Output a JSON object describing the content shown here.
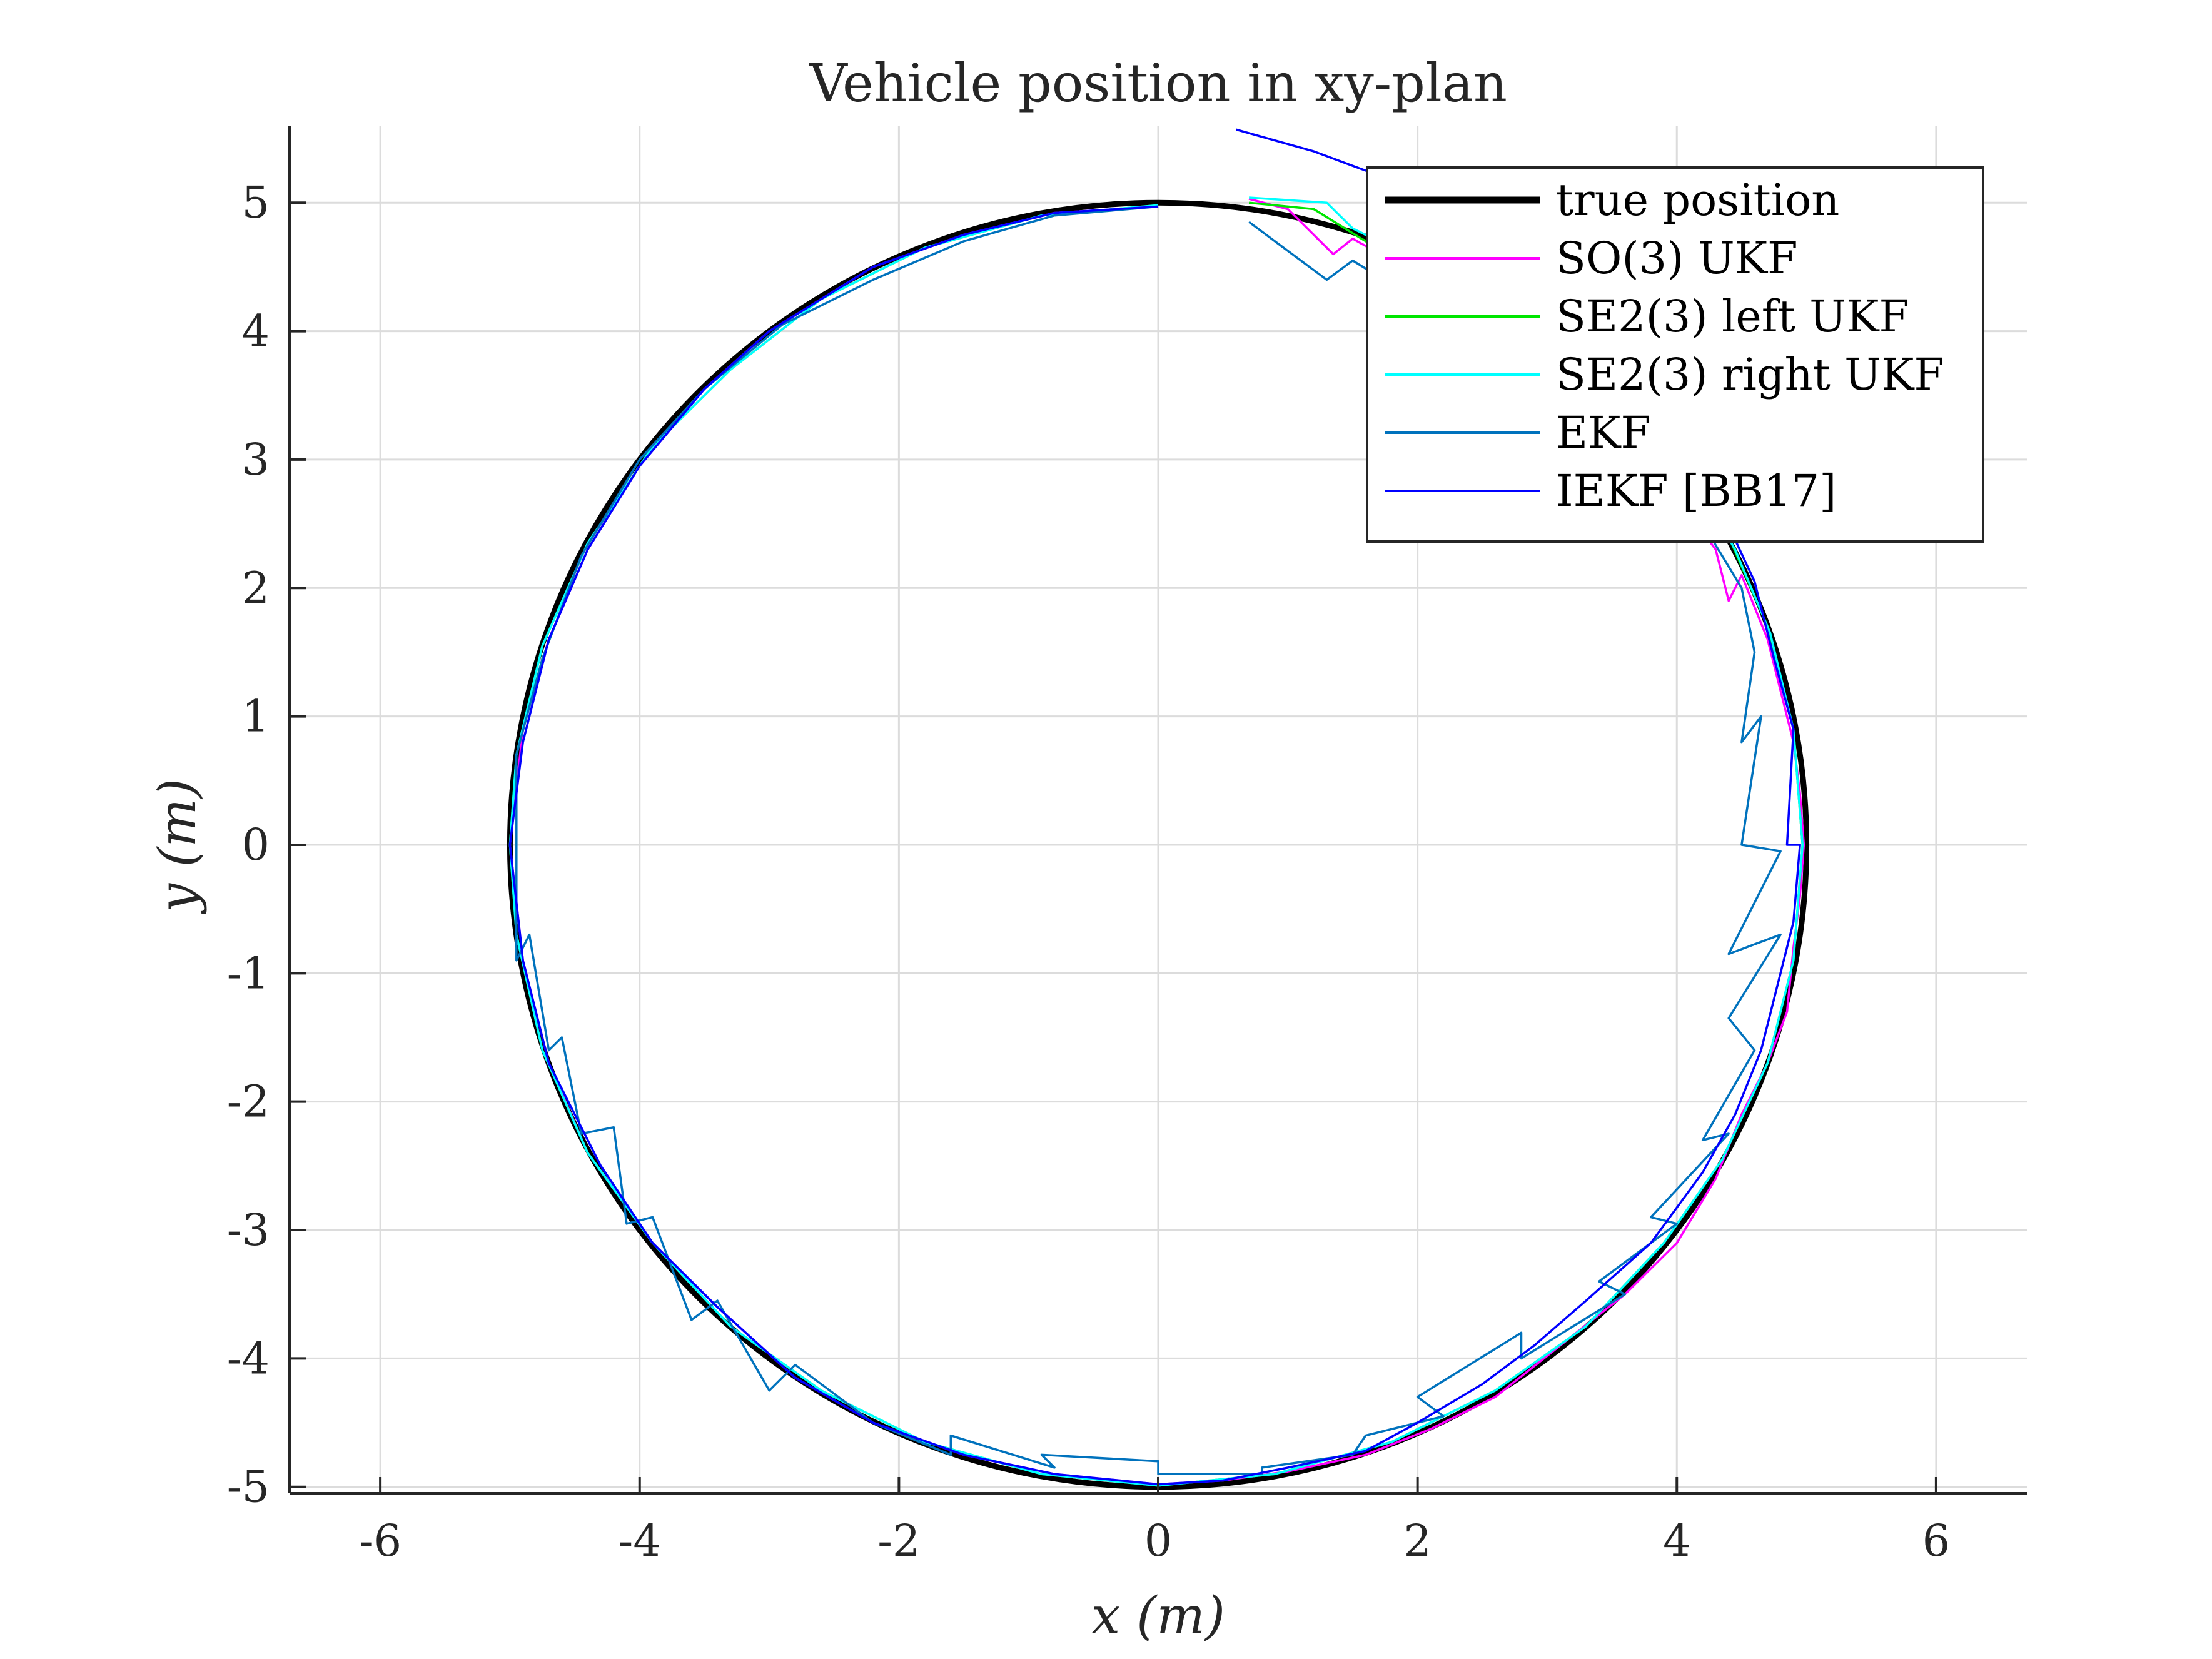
{
  "chart_data": {
    "type": "line",
    "title": "Vehicle position in xy-plan",
    "xlabel": "x (m)",
    "ylabel": "y (m)",
    "xlim": [
      -6.7,
      6.7
    ],
    "ylim": [
      -5.05,
      5.6
    ],
    "xticks": [
      -6,
      -4,
      -2,
      0,
      2,
      4,
      6
    ],
    "yticks": [
      -5,
      -4,
      -3,
      -2,
      -1,
      0,
      1,
      2,
      3,
      4,
      5
    ],
    "grid": true,
    "legend_position": "top-right",
    "series": [
      {
        "name": "true position",
        "color": "#000000",
        "shape": "circle",
        "center": [
          0,
          0
        ],
        "radius": 5
      },
      {
        "name": "SO(3) UKF",
        "color": "#ff00ff",
        "points": [
          [
            0.7,
            5.03
          ],
          [
            1.0,
            4.95
          ],
          [
            1.35,
            4.6
          ],
          [
            1.5,
            4.72
          ],
          [
            1.8,
            4.55
          ],
          [
            2.2,
            4.2
          ],
          [
            2.8,
            3.8
          ],
          [
            3.2,
            3.5
          ],
          [
            3.6,
            3.1
          ],
          [
            4.0,
            2.7
          ],
          [
            4.3,
            2.3
          ],
          [
            4.4,
            1.9
          ],
          [
            4.5,
            2.1
          ],
          [
            4.7,
            1.6
          ],
          [
            4.8,
            1.2
          ],
          [
            4.9,
            0.8
          ],
          [
            4.95,
            0.4
          ],
          [
            4.98,
            0.0
          ],
          [
            4.95,
            -0.4
          ],
          [
            4.9,
            -0.8
          ],
          [
            4.85,
            -1.3
          ],
          [
            4.7,
            -1.7
          ],
          [
            4.5,
            -2.1
          ],
          [
            4.3,
            -2.6
          ],
          [
            4.0,
            -3.1
          ],
          [
            3.6,
            -3.5
          ],
          [
            3.1,
            -3.9
          ],
          [
            2.6,
            -4.3
          ],
          [
            2.1,
            -4.55
          ],
          [
            1.6,
            -4.75
          ],
          [
            1.0,
            -4.88
          ],
          [
            0.5,
            -4.95
          ],
          [
            0.0,
            -4.98
          ],
          [
            -0.8,
            -4.9
          ],
          [
            -1.5,
            -4.75
          ],
          [
            -2.2,
            -4.5
          ],
          [
            -2.8,
            -4.15
          ],
          [
            -3.4,
            -3.6
          ],
          [
            -3.9,
            -3.1
          ],
          [
            -4.4,
            -2.4
          ],
          [
            -4.7,
            -1.7
          ],
          [
            -4.9,
            -0.9
          ],
          [
            -5.0,
            0.0
          ],
          [
            -4.9,
            0.9
          ],
          [
            -4.7,
            1.6
          ],
          [
            -4.4,
            2.3
          ],
          [
            -4.0,
            2.95
          ],
          [
            -3.5,
            3.55
          ],
          [
            -3.0,
            4.0
          ],
          [
            -2.2,
            4.5
          ],
          [
            -1.5,
            4.75
          ],
          [
            -0.8,
            4.92
          ],
          [
            0.0,
            4.97
          ]
        ]
      },
      {
        "name": "SE2(3) left UKF",
        "color": "#00e600",
        "points": [
          [
            0.7,
            5.0
          ],
          [
            1.2,
            4.95
          ],
          [
            1.6,
            4.7
          ],
          [
            2.0,
            4.55
          ],
          [
            2.6,
            4.25
          ],
          [
            3.1,
            3.9
          ],
          [
            3.6,
            3.45
          ],
          [
            4.0,
            3.0
          ],
          [
            4.4,
            2.4
          ],
          [
            4.7,
            1.7
          ],
          [
            4.9,
            0.9
          ],
          [
            4.97,
            0.0
          ],
          [
            4.9,
            -0.9
          ],
          [
            4.7,
            -1.7
          ],
          [
            4.35,
            -2.45
          ],
          [
            3.9,
            -3.1
          ],
          [
            3.3,
            -3.75
          ],
          [
            2.6,
            -4.25
          ],
          [
            1.8,
            -4.65
          ],
          [
            0.9,
            -4.9
          ],
          [
            0.0,
            -4.99
          ],
          [
            -0.9,
            -4.9
          ],
          [
            -1.8,
            -4.65
          ],
          [
            -2.6,
            -4.25
          ],
          [
            -3.3,
            -3.75
          ],
          [
            -3.9,
            -3.1
          ],
          [
            -4.4,
            -2.4
          ],
          [
            -4.75,
            -1.6
          ],
          [
            -4.95,
            -0.7
          ],
          [
            -5.0,
            0.0
          ],
          [
            -4.95,
            0.7
          ],
          [
            -4.75,
            1.55
          ],
          [
            -4.4,
            2.35
          ],
          [
            -3.9,
            3.1
          ],
          [
            -3.3,
            3.7
          ],
          [
            -2.6,
            4.25
          ],
          [
            -1.8,
            4.65
          ],
          [
            -0.9,
            4.9
          ],
          [
            0.0,
            4.98
          ]
        ]
      },
      {
        "name": "SE2(3) right UKF",
        "color": "#00ffff",
        "points": [
          [
            0.7,
            5.04
          ],
          [
            1.3,
            5.0
          ],
          [
            1.5,
            4.8
          ],
          [
            2.1,
            4.5
          ],
          [
            2.7,
            4.2
          ],
          [
            3.2,
            3.85
          ],
          [
            3.7,
            3.4
          ],
          [
            4.1,
            2.9
          ],
          [
            4.45,
            2.3
          ],
          [
            4.72,
            1.65
          ],
          [
            4.9,
            0.9
          ],
          [
            4.97,
            0.0
          ],
          [
            4.9,
            -0.9
          ],
          [
            4.7,
            -1.7
          ],
          [
            4.35,
            -2.45
          ],
          [
            3.9,
            -3.1
          ],
          [
            3.3,
            -3.75
          ],
          [
            2.6,
            -4.25
          ],
          [
            1.8,
            -4.65
          ],
          [
            0.9,
            -4.9
          ],
          [
            0.0,
            -4.99
          ],
          [
            -0.9,
            -4.9
          ],
          [
            -1.8,
            -4.65
          ],
          [
            -2.6,
            -4.25
          ],
          [
            -3.3,
            -3.75
          ],
          [
            -3.9,
            -3.1
          ],
          [
            -4.4,
            -2.4
          ],
          [
            -4.75,
            -1.6
          ],
          [
            -4.95,
            -0.7
          ],
          [
            -5.0,
            0.0
          ],
          [
            -4.95,
            0.7
          ],
          [
            -4.75,
            1.55
          ],
          [
            -4.4,
            2.35
          ],
          [
            -3.9,
            3.1
          ],
          [
            -3.3,
            3.7
          ],
          [
            -2.6,
            4.25
          ],
          [
            -1.8,
            4.65
          ],
          [
            -0.9,
            4.9
          ],
          [
            0.0,
            4.98
          ]
        ]
      },
      {
        "name": "EKF",
        "color": "#0072bd",
        "points": [
          [
            0.7,
            4.85
          ],
          [
            1.3,
            4.4
          ],
          [
            1.5,
            4.55
          ],
          [
            1.9,
            4.3
          ],
          [
            2.3,
            4.1
          ],
          [
            2.8,
            3.8
          ],
          [
            3.3,
            3.3
          ],
          [
            3.8,
            2.9
          ],
          [
            4.2,
            2.5
          ],
          [
            4.5,
            2.0
          ],
          [
            4.6,
            1.5
          ],
          [
            4.5,
            0.8
          ],
          [
            4.65,
            1.0
          ],
          [
            4.5,
            0.0
          ],
          [
            4.8,
            -0.05
          ],
          [
            4.4,
            -0.85
          ],
          [
            4.8,
            -0.7
          ],
          [
            4.4,
            -1.35
          ],
          [
            4.6,
            -1.6
          ],
          [
            4.2,
            -2.3
          ],
          [
            4.4,
            -2.25
          ],
          [
            3.8,
            -2.9
          ],
          [
            4.0,
            -2.95
          ],
          [
            3.4,
            -3.4
          ],
          [
            3.6,
            -3.5
          ],
          [
            2.8,
            -4.0
          ],
          [
            2.8,
            -3.8
          ],
          [
            2.0,
            -4.3
          ],
          [
            2.2,
            -4.45
          ],
          [
            1.6,
            -4.6
          ],
          [
            1.5,
            -4.75
          ],
          [
            0.8,
            -4.85
          ],
          [
            0.8,
            -4.9
          ],
          [
            0.0,
            -4.9
          ],
          [
            0.0,
            -4.8
          ],
          [
            -0.9,
            -4.75
          ],
          [
            -0.8,
            -4.85
          ],
          [
            -1.6,
            -4.6
          ],
          [
            -1.6,
            -4.75
          ],
          [
            -2.2,
            -4.5
          ],
          [
            -2.8,
            -4.05
          ],
          [
            -3.0,
            -4.25
          ],
          [
            -3.4,
            -3.55
          ],
          [
            -3.6,
            -3.7
          ],
          [
            -3.9,
            -2.9
          ],
          [
            -4.1,
            -2.95
          ],
          [
            -4.2,
            -2.2
          ],
          [
            -4.45,
            -2.25
          ],
          [
            -4.6,
            -1.5
          ],
          [
            -4.7,
            -1.6
          ],
          [
            -4.85,
            -0.7
          ],
          [
            -4.95,
            -0.9
          ],
          [
            -4.95,
            0.0
          ],
          [
            -4.95,
            0.7
          ],
          [
            -4.75,
            1.45
          ],
          [
            -4.45,
            2.25
          ],
          [
            -4.0,
            3.0
          ],
          [
            -3.5,
            3.55
          ],
          [
            -2.9,
            4.05
          ],
          [
            -2.2,
            4.4
          ],
          [
            -1.5,
            4.7
          ],
          [
            -0.8,
            4.9
          ],
          [
            0.0,
            4.97
          ]
        ]
      },
      {
        "name": "IEKF [BB17]",
        "color": "#0000ff",
        "points": [
          [
            0.6,
            5.57
          ],
          [
            1.2,
            5.4
          ],
          [
            1.6,
            5.25
          ],
          [
            1.9,
            5.15
          ],
          [
            2.4,
            4.6
          ],
          [
            2.9,
            4.2
          ],
          [
            3.4,
            3.8
          ],
          [
            3.9,
            3.3
          ],
          [
            4.3,
            2.7
          ],
          [
            4.6,
            2.05
          ],
          [
            4.75,
            1.45
          ],
          [
            4.9,
            0.9
          ],
          [
            4.85,
            0.0
          ],
          [
            4.95,
            0.0
          ],
          [
            4.9,
            -0.6
          ],
          [
            4.75,
            -1.2
          ],
          [
            4.65,
            -1.6
          ],
          [
            4.45,
            -2.1
          ],
          [
            4.2,
            -2.55
          ],
          [
            3.8,
            -3.1
          ],
          [
            3.3,
            -3.55
          ],
          [
            2.9,
            -3.9
          ],
          [
            2.5,
            -4.2
          ],
          [
            2.0,
            -4.5
          ],
          [
            1.6,
            -4.72
          ],
          [
            1.0,
            -4.85
          ],
          [
            0.5,
            -4.95
          ],
          [
            0.0,
            -4.98
          ],
          [
            -0.8,
            -4.9
          ],
          [
            -1.5,
            -4.75
          ],
          [
            -2.2,
            -4.5
          ],
          [
            -2.8,
            -4.15
          ],
          [
            -3.4,
            -3.6
          ],
          [
            -3.9,
            -3.1
          ],
          [
            -4.3,
            -2.5
          ],
          [
            -4.7,
            -1.7
          ],
          [
            -4.9,
            -0.9
          ],
          [
            -5.0,
            0.0
          ],
          [
            -4.9,
            0.8
          ],
          [
            -4.7,
            1.6
          ],
          [
            -4.4,
            2.3
          ],
          [
            -4.0,
            2.95
          ],
          [
            -3.5,
            3.55
          ],
          [
            -3.0,
            4.0
          ],
          [
            -2.2,
            4.5
          ],
          [
            -1.5,
            4.75
          ],
          [
            -0.8,
            4.92
          ],
          [
            0.0,
            4.97
          ]
        ]
      }
    ]
  }
}
